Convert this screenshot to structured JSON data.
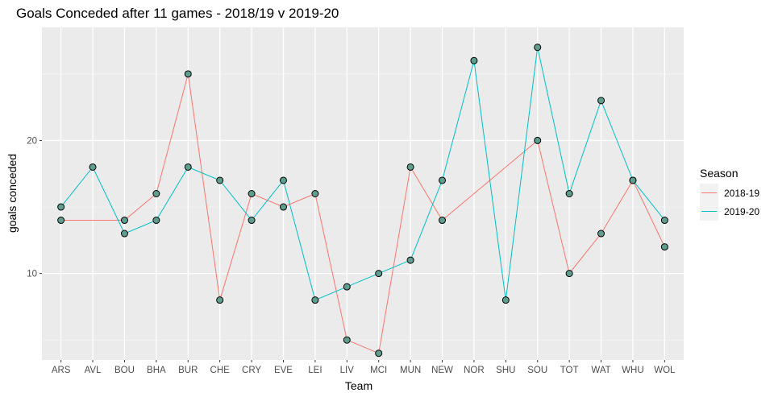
{
  "chart_data": {
    "type": "line",
    "title": "Goals Conceded after 11 games - 2018/19 v 2019-20",
    "xlabel": "Team",
    "ylabel": "goals conceded",
    "ylim": [
      3.5,
      28.5
    ],
    "yticks": [
      10,
      20
    ],
    "grid": true,
    "legend_position": "right",
    "legend_title": "Season",
    "point_fill": "#5f9e8f",
    "series": [
      {
        "name": "2018-19",
        "color": "#f8766d",
        "points": [
          {
            "x": "ARS",
            "y": 14
          },
          {
            "x": "BOU",
            "y": 14
          },
          {
            "x": "BHA",
            "y": 16
          },
          {
            "x": "BUR",
            "y": 25
          },
          {
            "x": "CHE",
            "y": 8
          },
          {
            "x": "CRY",
            "y": 16
          },
          {
            "x": "EVE",
            "y": 15
          },
          {
            "x": "LEI",
            "y": 16
          },
          {
            "x": "LIV",
            "y": 5
          },
          {
            "x": "MCI",
            "y": 4
          },
          {
            "x": "MUN",
            "y": 18
          },
          {
            "x": "NEW",
            "y": 14
          },
          {
            "x": "SOU",
            "y": 20
          },
          {
            "x": "TOT",
            "y": 10
          },
          {
            "x": "WAT",
            "y": 13
          },
          {
            "x": "WHU",
            "y": 17
          },
          {
            "x": "WOL",
            "y": 12
          }
        ]
      },
      {
        "name": "2019-20",
        "color": "#00bfc4",
        "points": [
          {
            "x": "ARS",
            "y": 15
          },
          {
            "x": "AVL",
            "y": 18
          },
          {
            "x": "BOU",
            "y": 13
          },
          {
            "x": "BHA",
            "y": 14
          },
          {
            "x": "BUR",
            "y": 18
          },
          {
            "x": "CHE",
            "y": 17
          },
          {
            "x": "CRY",
            "y": 14
          },
          {
            "x": "EVE",
            "y": 17
          },
          {
            "x": "LEI",
            "y": 8
          },
          {
            "x": "LIV",
            "y": 9
          },
          {
            "x": "MCI",
            "y": 10
          },
          {
            "x": "MUN",
            "y": 11
          },
          {
            "x": "NEW",
            "y": 17
          },
          {
            "x": "NOR",
            "y": 26
          },
          {
            "x": "SHU",
            "y": 8
          },
          {
            "x": "SOU",
            "y": 27
          },
          {
            "x": "TOT",
            "y": 16
          },
          {
            "x": "WAT",
            "y": 23
          },
          {
            "x": "WHU",
            "y": 17
          },
          {
            "x": "WOL",
            "y": 14
          }
        ]
      }
    ],
    "categories": [
      "ARS",
      "AVL",
      "BOU",
      "BHA",
      "BUR",
      "CHE",
      "CRY",
      "EVE",
      "LEI",
      "LIV",
      "MCI",
      "MUN",
      "NEW",
      "NOR",
      "SHU",
      "SOU",
      "TOT",
      "WAT",
      "WHU",
      "WOL"
    ]
  }
}
